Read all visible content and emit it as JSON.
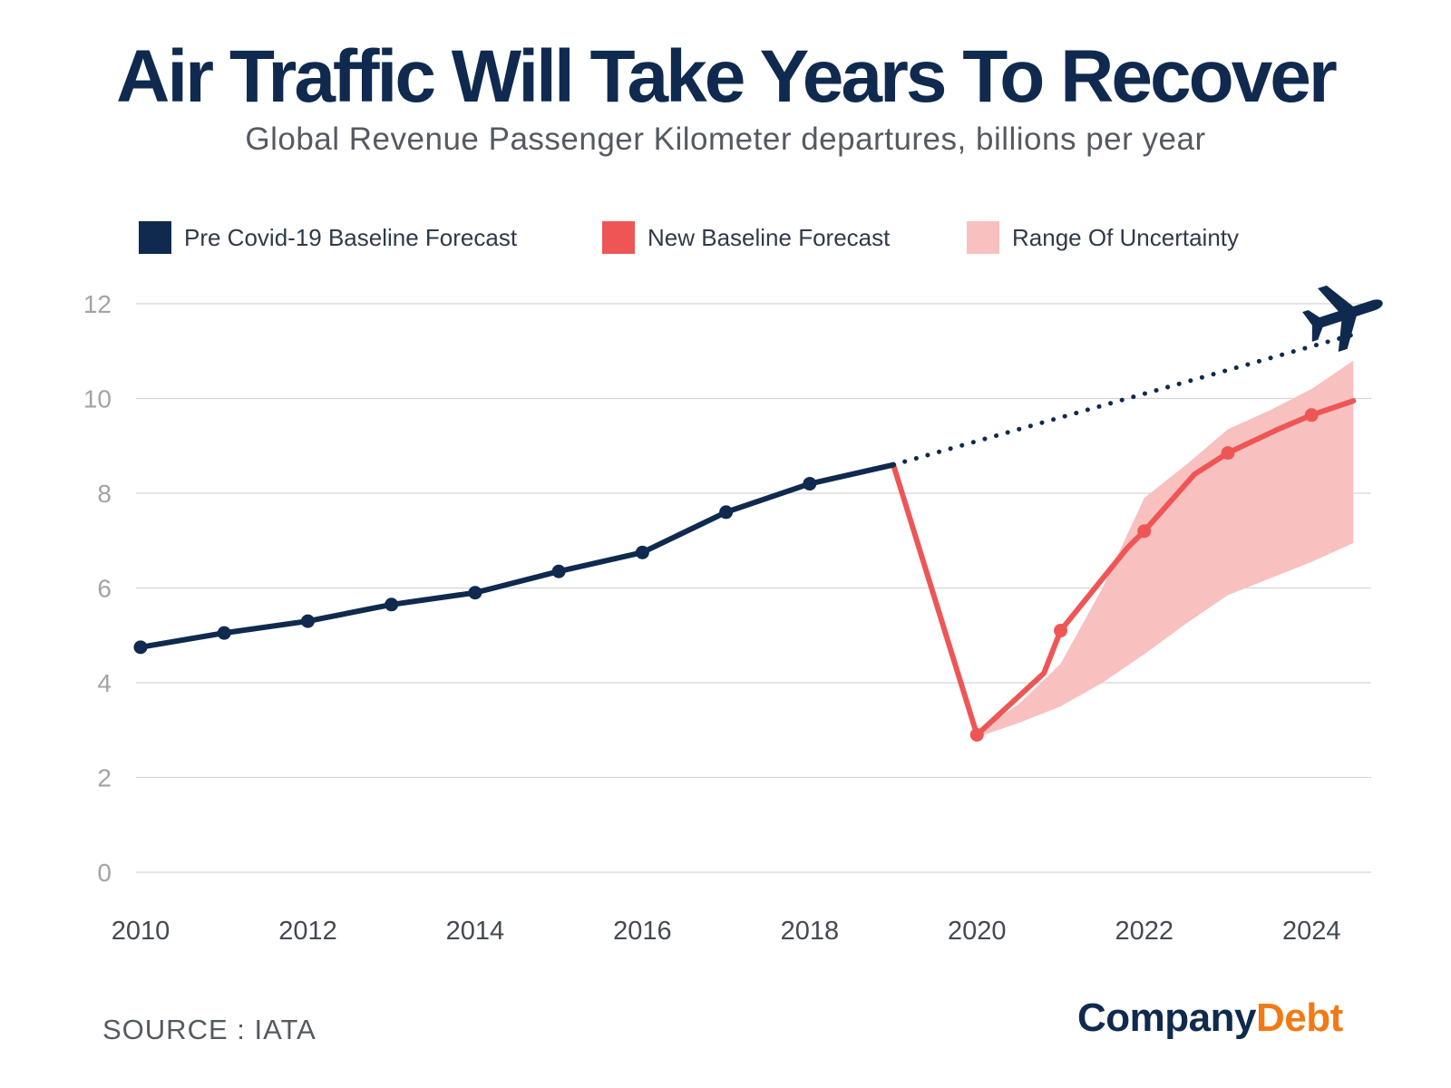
{
  "chart_data": {
    "type": "line",
    "title": "Air Traffic Will Take Years To Recover",
    "subtitle": "Global Revenue Passenger Kilometer departures, billions per year",
    "xlabel": "",
    "ylabel": "",
    "xlim": [
      2010,
      2024.8
    ],
    "ylim": [
      0,
      12
    ],
    "x_ticks": [
      2010,
      2012,
      2014,
      2016,
      2018,
      2020,
      2022,
      2024
    ],
    "y_ticks": [
      0,
      2,
      4,
      6,
      8,
      10,
      12
    ],
    "grid": true,
    "legend_position": "top",
    "series": [
      {
        "name": "Pre Covid-19 Baseline Forecast",
        "color": "#0f2a4e",
        "style": "solid",
        "points": [
          [
            2010,
            4.75
          ],
          [
            2011,
            5.05
          ],
          [
            2012,
            5.3
          ],
          [
            2013,
            5.65
          ],
          [
            2014,
            5.9
          ],
          [
            2015,
            6.35
          ],
          [
            2016,
            6.75
          ],
          [
            2017,
            7.6
          ],
          [
            2018,
            8.2
          ],
          [
            2019,
            8.6
          ]
        ]
      },
      {
        "name": "Pre Covid-19 Baseline Forecast",
        "color": "#0f2a4e",
        "style": "dotted",
        "points": [
          [
            2019,
            8.6
          ],
          [
            2024.6,
            11.4
          ]
        ]
      },
      {
        "name": "New Baseline Forecast",
        "color": "#ee5656",
        "style": "solid",
        "points": [
          [
            2019,
            8.6
          ],
          [
            2020,
            2.9
          ],
          [
            2020.8,
            4.2
          ],
          [
            2021,
            5.1
          ],
          [
            2021.8,
            6.85
          ],
          [
            2022,
            7.2
          ],
          [
            2022.6,
            8.4
          ],
          [
            2023,
            8.85
          ],
          [
            2023.6,
            9.35
          ],
          [
            2024,
            9.65
          ],
          [
            2024.5,
            9.95
          ]
        ],
        "markers": [
          [
            2020,
            2.9
          ],
          [
            2021,
            5.1
          ],
          [
            2022,
            7.2
          ],
          [
            2023,
            8.85
          ],
          [
            2024,
            9.65
          ]
        ]
      }
    ],
    "band": {
      "name": "Range Of Uncertainty",
      "color": "#f9c0c0",
      "points": [
        [
          2020,
          2.85,
          2.95
        ],
        [
          2020.5,
          3.15,
          3.55
        ],
        [
          2021,
          3.5,
          4.4
        ],
        [
          2021.5,
          4.0,
          6.0
        ],
        [
          2022,
          4.6,
          7.9
        ],
        [
          2022.5,
          5.25,
          8.6
        ],
        [
          2023,
          5.85,
          9.35
        ],
        [
          2023.5,
          6.2,
          9.75
        ],
        [
          2024,
          6.55,
          10.2
        ],
        [
          2024.5,
          6.95,
          10.8
        ]
      ]
    }
  },
  "legend": [
    {
      "label": "Pre Covid-19 Baseline Forecast",
      "color": "#0f2a4e"
    },
    {
      "label": "New Baseline Forecast",
      "color": "#ee5656"
    },
    {
      "label": "Range Of Uncertainty",
      "color": "#f9c0c0"
    }
  ],
  "footer": {
    "source": "SOURCE : IATA",
    "brand_primary": "Company",
    "brand_secondary": "Debt"
  },
  "icons": {
    "plane": "airplane-icon"
  },
  "colors": {
    "navy": "#0f2a4e",
    "red": "#ee5656",
    "band": "#f9c0c0",
    "brand_orange": "#f07a16"
  }
}
